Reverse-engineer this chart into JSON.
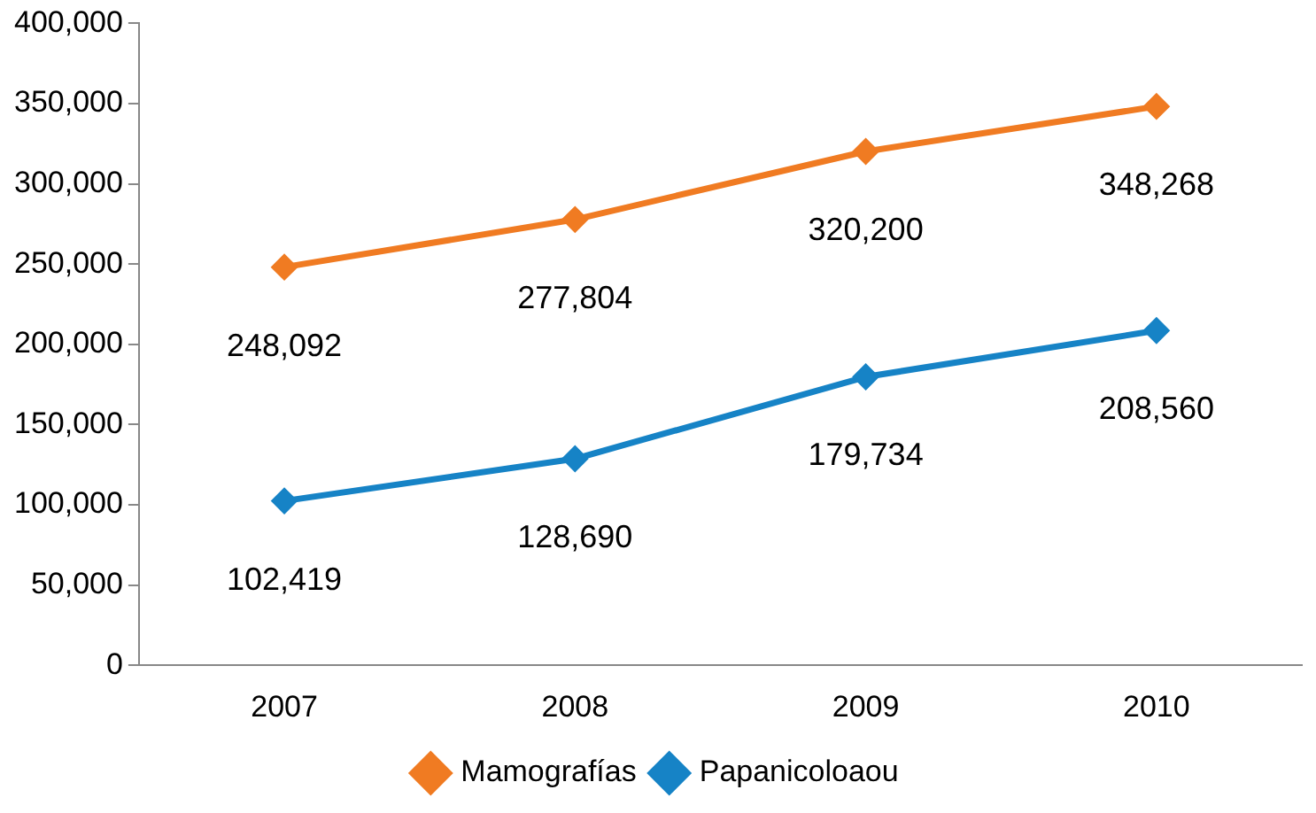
{
  "chart_data": {
    "type": "line",
    "categories": [
      "2007",
      "2008",
      "2009",
      "2010"
    ],
    "series": [
      {
        "name": "Mamografías",
        "color": "#f07b22",
        "values": [
          248092,
          277804,
          320200,
          348268
        ],
        "value_labels": [
          "248,092",
          "277,804",
          "320,200",
          "348,268"
        ]
      },
      {
        "name": "Papanicoloaou",
        "color": "#1683c6",
        "values": [
          102419,
          128690,
          179734,
          208560
        ],
        "value_labels": [
          "102,419",
          "128,690",
          "179,734",
          "208,560"
        ]
      }
    ],
    "ylim": [
      0,
      400000
    ],
    "yticks": [
      {
        "value": 0,
        "label": "0"
      },
      {
        "value": 50000,
        "label": "50,000"
      },
      {
        "value": 100000,
        "label": "100,000"
      },
      {
        "value": 150000,
        "label": "150,000"
      },
      {
        "value": 200000,
        "label": "200,000"
      },
      {
        "value": 250000,
        "label": "250,000"
      },
      {
        "value": 300000,
        "label": "300,000"
      },
      {
        "value": 350000,
        "label": "350,000"
      },
      {
        "value": 400000,
        "label": "400,000"
      }
    ],
    "grid": false,
    "legend": "bottom",
    "marker": "diamond",
    "line_style": "solid"
  }
}
